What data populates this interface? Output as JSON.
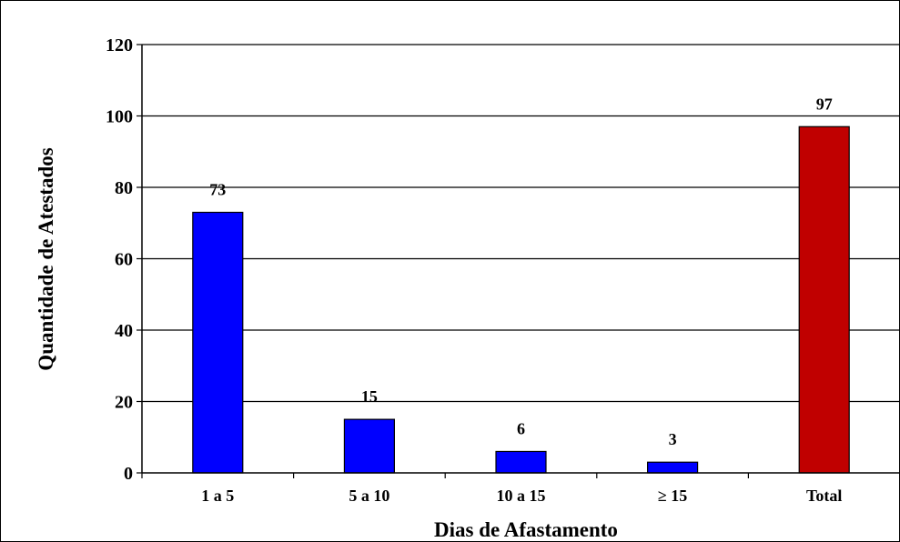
{
  "chart_data": {
    "type": "bar",
    "categories": [
      "1 a 5",
      "5 a 10",
      "10 a 15",
      "≥ 15",
      "Total"
    ],
    "values": [
      73,
      15,
      6,
      3,
      97
    ],
    "bar_colors": [
      "#0000ff",
      "#0000ff",
      "#0000ff",
      "#0000ff",
      "#c00000"
    ],
    "title": "",
    "xlabel": "Dias de Afastamento",
    "ylabel": "Quantidade de Atestados",
    "ylim": [
      0,
      120
    ],
    "yticks": [
      0,
      20,
      40,
      60,
      80,
      100,
      120
    ],
    "grid": true,
    "data_labels": true
  }
}
